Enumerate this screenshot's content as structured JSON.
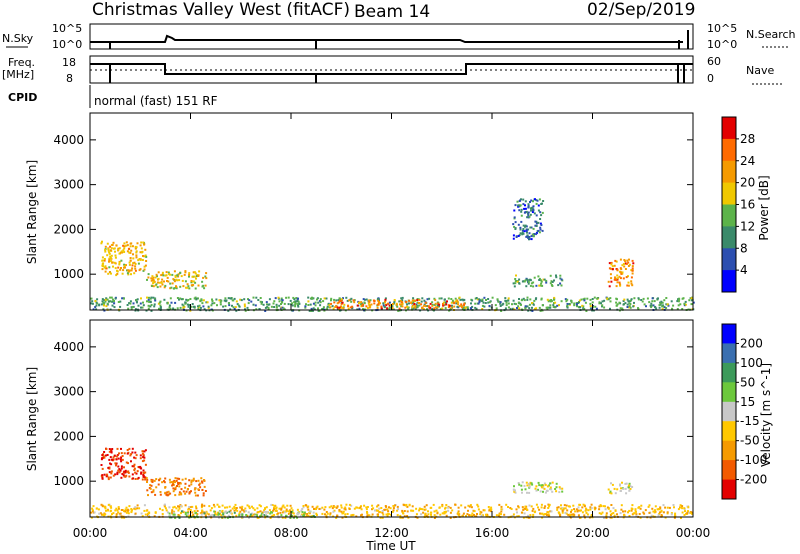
{
  "header": {
    "station": "Christmas Valley West (fitACF)",
    "beam": "Beam 14",
    "date": "02/Sep/2019"
  },
  "top_panels": {
    "nsky_label": "N.Sky",
    "nsky_ticks": [
      "10^5",
      "10^0"
    ],
    "nsearch_label": "N.Search",
    "nsearch_ticks": [
      "10^5",
      "10^0"
    ],
    "freq_label_1": "Freq.",
    "freq_label_2": "[MHz]",
    "freq_ticks": [
      "18",
      "8"
    ],
    "nave_label": "Nave",
    "nave_ticks": [
      "60",
      "0"
    ],
    "cpid_label": "CPID",
    "cpid_text": "normal (fast) 151 RF"
  },
  "time_axis": {
    "label": "Time UT",
    "ticks": [
      "00:00",
      "04:00",
      "08:00",
      "12:00",
      "16:00",
      "20:00",
      "00:00"
    ]
  },
  "colors": {
    "power": [
      "#0000ff",
      "#2c4fb0",
      "#3a8a6a",
      "#5cb34a",
      "#f0c800",
      "#f59a00",
      "#ff6a00",
      "#e30000"
    ],
    "velocity": [
      "#e30000",
      "#f25a00",
      "#f59a00",
      "#ffc800",
      "#c8c8c8",
      "#6cc83c",
      "#3c9a5a",
      "#3a6fb0",
      "#0000ff"
    ]
  },
  "chart_data": [
    {
      "type": "heatmap",
      "panel": "power",
      "ylabel": "Slant Range [km]",
      "yticks": [
        "1000",
        "2000",
        "3000",
        "4000"
      ],
      "ylim": [
        200,
        4600
      ],
      "xlim_hours": [
        0,
        24
      ],
      "colorbar_label": "Power [dB]",
      "colorbar_ticks": [
        "4",
        "8",
        "12",
        "16",
        "20",
        "24",
        "28"
      ],
      "regions": [
        {
          "t": [
            0.4,
            2.2
          ],
          "r": [
            1000,
            1750
          ],
          "value": 20
        },
        {
          "t": [
            2.2,
            4.6
          ],
          "r": [
            700,
            1100
          ],
          "value": 18
        },
        {
          "t": [
            0.0,
            24.0
          ],
          "r": [
            200,
            500
          ],
          "value": 12
        },
        {
          "t": [
            9.5,
            15.0
          ],
          "r": [
            250,
            450
          ],
          "value": 24
        },
        {
          "t": [
            16.8,
            18.8
          ],
          "r": [
            750,
            1000
          ],
          "value": 12
        },
        {
          "t": [
            16.8,
            18.0
          ],
          "r": [
            1800,
            2700
          ],
          "value": 8
        },
        {
          "t": [
            20.6,
            21.6
          ],
          "r": [
            750,
            1350
          ],
          "value": 24
        }
      ]
    },
    {
      "type": "heatmap",
      "panel": "velocity",
      "ylabel": "Slant Range [km]",
      "yticks": [
        "1000",
        "2000",
        "3000",
        "4000"
      ],
      "ylim": [
        200,
        4600
      ],
      "xlim_hours": [
        0,
        24
      ],
      "colorbar_label": "Velocity [m s^-1]",
      "colorbar_ticks": [
        "200",
        "100",
        "50",
        "15",
        "-15",
        "-50",
        "-100",
        "-200"
      ],
      "regions": [
        {
          "t": [
            0.4,
            2.2
          ],
          "r": [
            1050,
            1750
          ],
          "value": -200
        },
        {
          "t": [
            2.2,
            4.6
          ],
          "r": [
            700,
            1100
          ],
          "value": -100
        },
        {
          "t": [
            0.0,
            24.0
          ],
          "r": [
            200,
            500
          ],
          "value": -40
        },
        {
          "t": [
            3.0,
            9.0
          ],
          "r": [
            200,
            350
          ],
          "value": 30
        },
        {
          "t": [
            16.8,
            18.8
          ],
          "r": [
            750,
            1000
          ],
          "value": 0
        },
        {
          "t": [
            20.6,
            21.6
          ],
          "r": [
            750,
            1000
          ],
          "value": 0
        }
      ]
    }
  ]
}
